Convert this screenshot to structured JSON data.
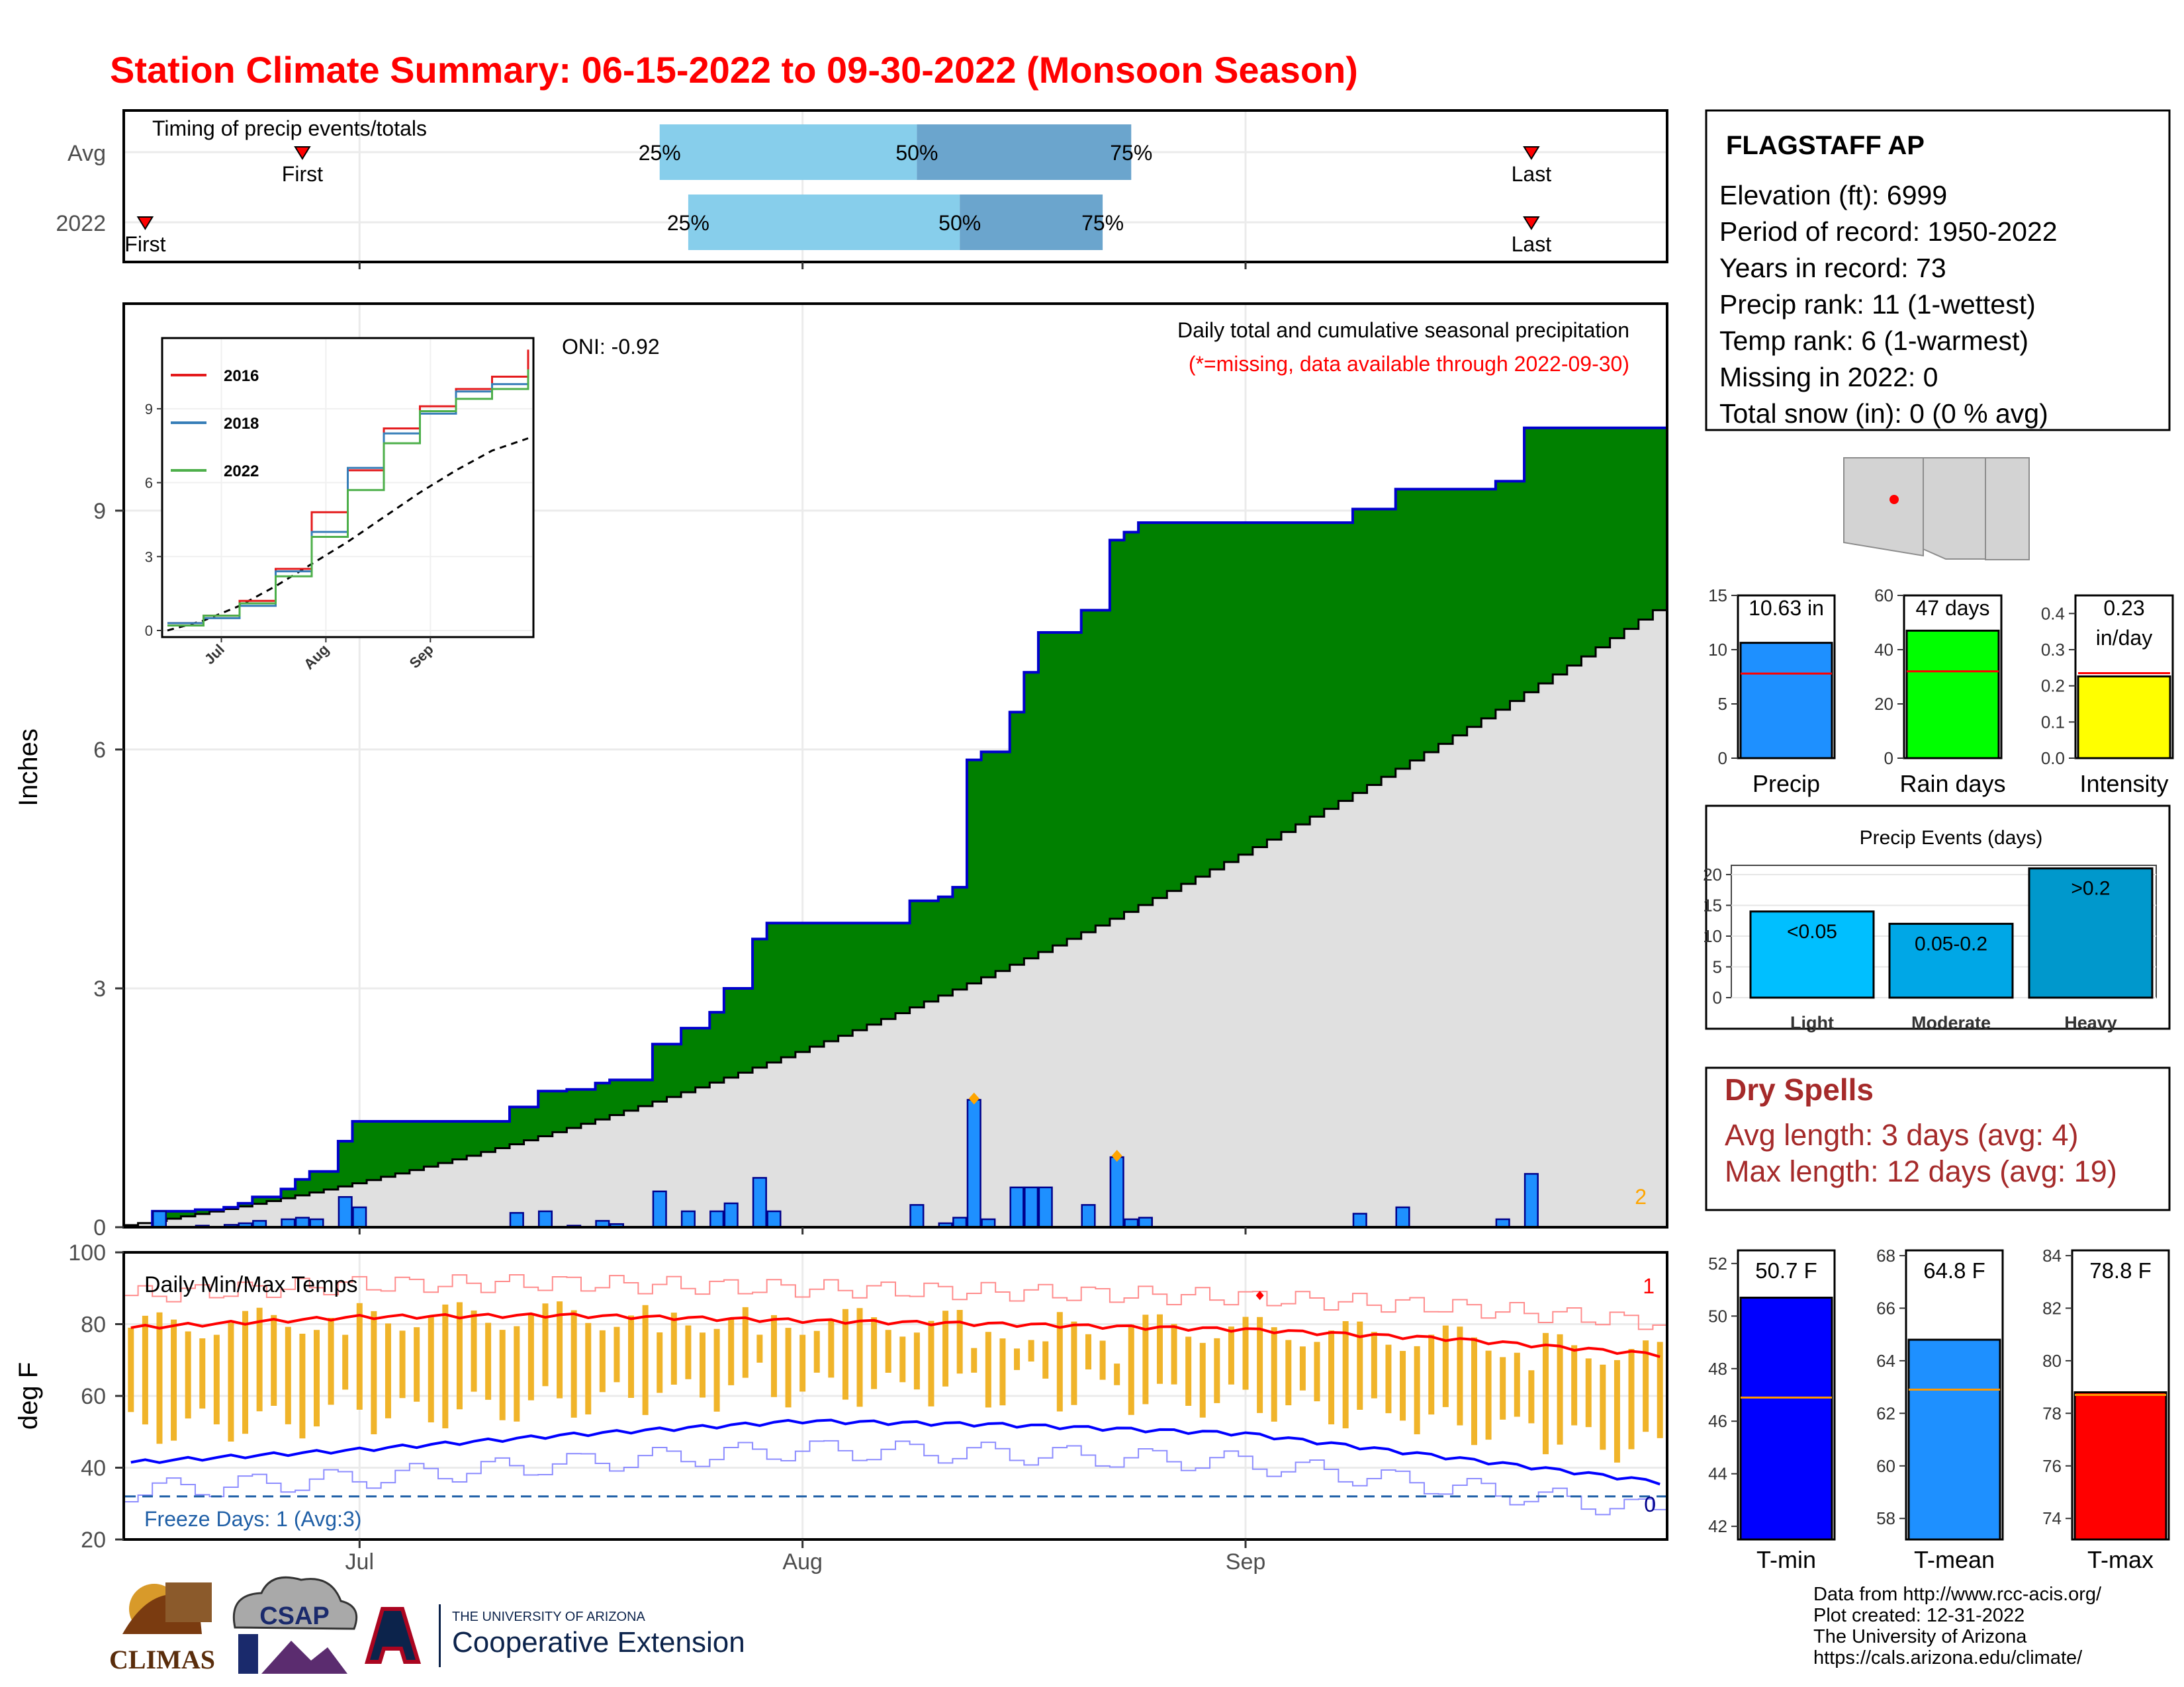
{
  "title": "Station Climate Summary: 06-15-2022 to 09-30-2022 (Monsoon Season)",
  "colors": {
    "title": "#ff0000",
    "cumulative_2022_fill": "#008000",
    "cumulative_2022_line": "#0000cd",
    "average_fill": "#e0e0e0",
    "daily_bar": "#1e90ff",
    "timing_25_50": "#87ceeb",
    "timing_50_75": "#6ba5cd",
    "temp_bar": "#f0b42a",
    "max_line": "#ff0000",
    "min_line": "#0000ff",
    "dry_spells": "#a52a2a",
    "precip_bar": "#1e90ff",
    "rain_days_bar": "#00ff00",
    "intensity_bar": "#ffff00",
    "event_light": "#00bfff",
    "event_moderate": "#00a7e6",
    "event_heavy": "#0098cc",
    "tmin_bar": "#0000ff",
    "tmean_bar": "#1e90ff",
    "tmax_bar": "#ff0000",
    "avg_marker_line": "#ff0000",
    "avg_marker_line_temp": "#ff9900"
  },
  "timing": {
    "title": "Timing of precip events/totals",
    "rows": [
      {
        "label": "Avg",
        "first_date": "2022-06-27",
        "p25": "2022-07-22",
        "p50": "2022-08-09",
        "p75": "2022-08-24",
        "last_date": "2022-09-21",
        "first_label": "First",
        "last_label": "Last",
        "p25_label": "25%",
        "p50_label": "50%",
        "p75_label": "75%"
      },
      {
        "label": "2022",
        "first_date": "2022-06-16",
        "p25": "2022-07-24",
        "p50": "2022-08-12",
        "p75": "2022-08-22",
        "last_date": "2022-09-21",
        "first_label": "First",
        "last_label": "Last",
        "p25_label": "25%",
        "p50_label": "50%",
        "p75_label": "75%"
      }
    ]
  },
  "station": {
    "name": "FLAGSTAFF AP",
    "lines": [
      "Elevation (ft): 6999",
      "Period of record: 1950-2022",
      "Years in record: 73",
      "Precip rank: 11 (1-wettest)",
      "Temp rank: 6 (1-warmest)",
      "Missing in 2022: 0",
      "Total snow (in): 0 (0 % avg)"
    ]
  },
  "precip_panel": {
    "oni": "ONI: -0.92",
    "subtitle": "Daily total and cumulative seasonal precipitation",
    "missing_note": "(*=missing, data available through 2022-09-30)",
    "ylabel": "Inches",
    "corner_number": "2"
  },
  "temp_panel": {
    "title": "Daily Min/Max Temps",
    "ylabel": "deg F",
    "freeze_label": "Freeze Days: 1 (Avg:3)",
    "top_count": "1",
    "bottom_count": "0"
  },
  "x_axis": {
    "start": "2022-06-15",
    "end": "2022-09-30",
    "ticks": [
      {
        "date": "2022-07-01",
        "label": "Jul"
      },
      {
        "date": "2022-08-01",
        "label": "Aug"
      },
      {
        "date": "2022-09-01",
        "label": "Sep"
      }
    ]
  },
  "inset": {
    "legend": [
      "2016",
      "2018",
      "2022"
    ],
    "series_colors": [
      "#e41a1c",
      "#377eb8",
      "#4daf4a"
    ],
    "x_ticks": [
      "Jul",
      "Aug",
      "Sep"
    ],
    "y_ticks": [
      "0",
      "3",
      "6",
      "9"
    ]
  },
  "summary_bars": [
    {
      "label": "Precip",
      "value_label": "10.63 in",
      "value": 10.63,
      "avg": 7.8,
      "ylim": [
        0,
        15
      ],
      "yticks": [
        "0",
        "5",
        "10",
        "15"
      ]
    },
    {
      "label": "Rain days",
      "value_label": "47 days",
      "value": 47,
      "avg": 32,
      "ylim": [
        0,
        60
      ],
      "yticks": [
        "0",
        "20",
        "40",
        "60"
      ]
    },
    {
      "label": "Intensity",
      "value_label": "0.23",
      "value_label2": "in/day",
      "value": 0.226,
      "avg": 0.235,
      "ylim": [
        0,
        0.45
      ],
      "yticks": [
        "0.0",
        "0.1",
        "0.2",
        "0.3",
        "0.4"
      ]
    }
  ],
  "events": {
    "title": "Precip Events (days)",
    "yticks": [
      "0",
      "5",
      "10",
      "15",
      "20"
    ],
    "bars": [
      {
        "label": "Light",
        "bar_label": "<0.05",
        "value": 14
      },
      {
        "label": "Moderate",
        "bar_label": "0.05-0.2",
        "value": 12
      },
      {
        "label": "Heavy",
        "bar_label": ">0.2",
        "value": 21
      }
    ]
  },
  "dry_spells": {
    "title": "Dry Spells",
    "avg_line": "Avg length: 3 days (avg: 4)",
    "max_line": "Max length: 12 days (avg: 19)"
  },
  "temp_bars": [
    {
      "label": "T-min",
      "value_label": "50.7 F",
      "value": 50.7,
      "avg": 46.9,
      "ylim": [
        41.5,
        52.5
      ],
      "yticks": [
        42,
        44,
        46,
        48,
        50,
        52
      ]
    },
    {
      "label": "T-mean",
      "value_label": "64.8 F",
      "value": 64.8,
      "avg": 62.9,
      "ylim": [
        57.2,
        68.2
      ],
      "yticks": [
        58,
        60,
        62,
        64,
        66,
        68
      ]
    },
    {
      "label": "T-max",
      "value_label": "78.8 F",
      "value": 78.8,
      "avg": 78.7,
      "ylim": [
        73.2,
        84.2
      ],
      "yticks": [
        74,
        76,
        78,
        80,
        82,
        84
      ]
    }
  ],
  "credits": [
    "Data from http://www.rcc-acis.org/",
    "Plot created: 12-31-2022",
    "The University of Arizona",
    "https://cals.arizona.edu/climate/"
  ],
  "logos": {
    "climas": "CLIMAS",
    "csap": "CSAP",
    "ua_small": "THE UNIVERSITY OF ARIZONA",
    "ua_main": "Cooperative Extension"
  },
  "chart_data": [
    {
      "type": "area",
      "title": "Daily total and cumulative seasonal precipitation",
      "ylabel": "Inches",
      "ylim": [
        0,
        11.6
      ],
      "x_start": "2022-06-15",
      "x_end": "2022-09-30",
      "daily_precip": [
        {
          "date": "2022-06-17",
          "value": 0.2
        },
        {
          "date": "2022-06-20",
          "value": 0.02
        },
        {
          "date": "2022-06-22",
          "value": 0.03
        },
        {
          "date": "2022-06-23",
          "value": 0.05
        },
        {
          "date": "2022-06-24",
          "value": 0.08
        },
        {
          "date": "2022-06-26",
          "value": 0.1
        },
        {
          "date": "2022-06-27",
          "value": 0.12
        },
        {
          "date": "2022-06-28",
          "value": 0.1
        },
        {
          "date": "2022-06-30",
          "value": 0.38
        },
        {
          "date": "2022-07-01",
          "value": 0.25
        },
        {
          "date": "2022-07-12",
          "value": 0.18
        },
        {
          "date": "2022-07-14",
          "value": 0.2
        },
        {
          "date": "2022-07-16",
          "value": 0.02
        },
        {
          "date": "2022-07-18",
          "value": 0.08
        },
        {
          "date": "2022-07-19",
          "value": 0.04
        },
        {
          "date": "2022-07-22",
          "value": 0.45
        },
        {
          "date": "2022-07-24",
          "value": 0.2
        },
        {
          "date": "2022-07-26",
          "value": 0.2
        },
        {
          "date": "2022-07-27",
          "value": 0.3
        },
        {
          "date": "2022-07-29",
          "value": 0.62
        },
        {
          "date": "2022-07-30",
          "value": 0.2
        },
        {
          "date": "2022-08-09",
          "value": 0.28
        },
        {
          "date": "2022-08-11",
          "value": 0.05
        },
        {
          "date": "2022-08-12",
          "value": 0.12
        },
        {
          "date": "2022-08-13",
          "value": 1.6
        },
        {
          "date": "2022-08-14",
          "value": 0.1
        },
        {
          "date": "2022-08-16",
          "value": 0.5
        },
        {
          "date": "2022-08-17",
          "value": 0.5
        },
        {
          "date": "2022-08-18",
          "value": 0.5
        },
        {
          "date": "2022-08-21",
          "value": 0.28
        },
        {
          "date": "2022-08-23",
          "value": 0.88
        },
        {
          "date": "2022-08-24",
          "value": 0.1
        },
        {
          "date": "2022-08-25",
          "value": 0.12
        },
        {
          "date": "2022-09-09",
          "value": 0.17
        },
        {
          "date": "2022-09-12",
          "value": 0.25
        },
        {
          "date": "2022-09-19",
          "value": 0.1
        },
        {
          "date": "2022-09-21",
          "value": 0.67
        }
      ],
      "cumulative_avg_end": 7.75,
      "marked_days": [
        "2022-08-13",
        "2022-08-23"
      ]
    },
    {
      "type": "line",
      "title": "Daily Min/Max Temps",
      "ylabel": "deg F",
      "ylim": [
        20,
        100
      ],
      "yticks": [
        20,
        40,
        60,
        80,
        100
      ],
      "freeze_threshold": 32,
      "avg_max": [
        {
          "date": "2022-06-15",
          "value": 79
        },
        {
          "date": "2022-07-01",
          "value": 82
        },
        {
          "date": "2022-07-15",
          "value": 82.5
        },
        {
          "date": "2022-08-01",
          "value": 81
        },
        {
          "date": "2022-08-15",
          "value": 80
        },
        {
          "date": "2022-09-01",
          "value": 78.5
        },
        {
          "date": "2022-09-15",
          "value": 76
        },
        {
          "date": "2022-09-30",
          "value": 71.5
        }
      ],
      "avg_min": [
        {
          "date": "2022-06-15",
          "value": 41.5
        },
        {
          "date": "2022-07-01",
          "value": 45
        },
        {
          "date": "2022-07-15",
          "value": 49
        },
        {
          "date": "2022-08-01",
          "value": 53
        },
        {
          "date": "2022-08-15",
          "value": 52
        },
        {
          "date": "2022-09-01",
          "value": 49.5
        },
        {
          "date": "2022-09-15",
          "value": 43
        },
        {
          "date": "2022-09-30",
          "value": 36
        }
      ],
      "record_max_marker": {
        "date": "2022-09-02",
        "value": 88
      }
    },
    {
      "type": "line",
      "legend": [
        "2016",
        "2018",
        "2022"
      ],
      "series": [
        {
          "name": "2016",
          "values": [
            0.3,
            0.6,
            1.2,
            2.5,
            4.8,
            6.5,
            8.2,
            9.1,
            9.8,
            10.3,
            11.4
          ]
        },
        {
          "name": "2018",
          "values": [
            0.3,
            0.5,
            1.0,
            2.4,
            4.0,
            6.6,
            8.0,
            8.8,
            9.7,
            10.0,
            10.1
          ]
        },
        {
          "name": "2022",
          "values": [
            0.2,
            0.6,
            1.1,
            2.2,
            3.8,
            5.7,
            7.6,
            8.9,
            9.4,
            9.8,
            10.6
          ]
        }
      ],
      "avg": [
        0.0,
        0.4,
        1.0,
        1.8,
        2.7,
        3.6,
        4.6,
        5.6,
        6.5,
        7.3,
        7.8
      ],
      "x": [
        "2022-06-15",
        "2022-06-26",
        "2022-07-07",
        "2022-07-18",
        "2022-07-29",
        "2022-08-09",
        "2022-08-20",
        "2022-08-31",
        "2022-09-11",
        "2022-09-22",
        "2022-09-30"
      ],
      "ylim": [
        0,
        11.6
      ]
    }
  ]
}
